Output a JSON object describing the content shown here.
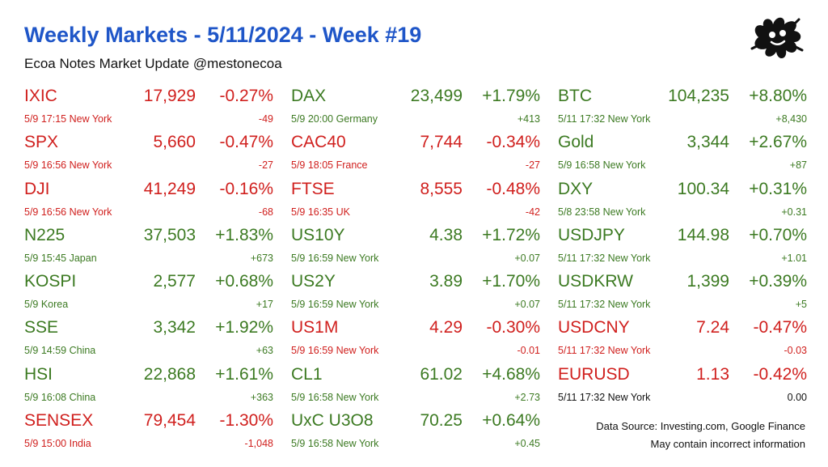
{
  "header": {
    "title": "Weekly Markets - 5/11/2024 - Week #19",
    "subtitle": "Ecoa Notes Market Update @mestonecoa",
    "logo_icon": "ink-blot-face-icon"
  },
  "colors": {
    "up": "#3c7a22",
    "down": "#d0201e",
    "flat": "#111111",
    "title": "#1f56c8"
  },
  "columns": [
    {
      "items": [
        {
          "symbol": "IXIC",
          "price": "17,929",
          "pct": "-0.27%",
          "when": "5/9 17:15 New York",
          "change": "-49",
          "trend": "down"
        },
        {
          "symbol": "SPX",
          "price": "5,660",
          "pct": "-0.47%",
          "when": "5/9 16:56 New York",
          "change": "-27",
          "trend": "down"
        },
        {
          "symbol": "DJI",
          "price": "41,249",
          "pct": "-0.16%",
          "when": "5/9 16:56 New York",
          "change": "-68",
          "trend": "down"
        },
        {
          "symbol": "N225",
          "price": "37,503",
          "pct": "+1.83%",
          "when": "5/9 15:45 Japan",
          "change": "+673",
          "trend": "up"
        },
        {
          "symbol": "KOSPI",
          "price": "2,577",
          "pct": "+0.68%",
          "when": "5/9  Korea",
          "change": "+17",
          "trend": "up"
        },
        {
          "symbol": "SSE",
          "price": "3,342",
          "pct": "+1.92%",
          "when": "5/9 14:59 China",
          "change": "+63",
          "trend": "up"
        },
        {
          "symbol": "HSI",
          "price": "22,868",
          "pct": "+1.61%",
          "when": "5/9 16:08 China",
          "change": "+363",
          "trend": "up"
        },
        {
          "symbol": "SENSEX",
          "price": "79,454",
          "pct": "-1.30%",
          "when": "5/9 15:00 India",
          "change": "-1,048",
          "trend": "down"
        }
      ]
    },
    {
      "items": [
        {
          "symbol": "DAX",
          "price": "23,499",
          "pct": "+1.79%",
          "when": "5/9 20:00 Germany",
          "change": "+413",
          "trend": "up"
        },
        {
          "symbol": "CAC40",
          "price": "7,744",
          "pct": "-0.34%",
          "when": "5/9 18:05 France",
          "change": "-27",
          "trend": "down"
        },
        {
          "symbol": "FTSE",
          "price": "8,555",
          "pct": "-0.48%",
          "when": "5/9 16:35 UK",
          "change": "-42",
          "trend": "down"
        },
        {
          "symbol": "US10Y",
          "price": "4.38",
          "pct": "+1.72%",
          "when": "5/9 16:59 New York",
          "change": "+0.07",
          "trend": "up"
        },
        {
          "symbol": "US2Y",
          "price": "3.89",
          "pct": "+1.70%",
          "when": "5/9 16:59 New York",
          "change": "+0.07",
          "trend": "up"
        },
        {
          "symbol": "US1M",
          "price": "4.29",
          "pct": "-0.30%",
          "when": "5/9 16:59 New York",
          "change": "-0.01",
          "trend": "down"
        },
        {
          "symbol": "CL1",
          "price": "61.02",
          "pct": "+4.68%",
          "when": "5/9 16:58 New York",
          "change": "+2.73",
          "trend": "up"
        },
        {
          "symbol": "UxC U3O8",
          "price": "70.25",
          "pct": "+0.64%",
          "when": "5/9 16:58 New York",
          "change": "+0.45",
          "trend": "up"
        }
      ]
    },
    {
      "items": [
        {
          "symbol": "BTC",
          "price": "104,235",
          "pct": "+8.80%",
          "when": "5/11 17:32 New York",
          "change": "+8,430",
          "trend": "up"
        },
        {
          "symbol": "Gold",
          "price": "3,344",
          "pct": "+2.67%",
          "when": "5/9 16:58 New York",
          "change": "+87",
          "trend": "up"
        },
        {
          "symbol": "DXY",
          "price": "100.34",
          "pct": "+0.31%",
          "when": "5/8 23:58 New York",
          "change": "+0.31",
          "trend": "up"
        },
        {
          "symbol": "USDJPY",
          "price": "144.98",
          "pct": "+0.70%",
          "when": "5/11 17:32 New York",
          "change": "+1.01",
          "trend": "up"
        },
        {
          "symbol": "USDKRW",
          "price": "1,399",
          "pct": "+0.39%",
          "when": "5/11 17:32 New York",
          "change": "+5",
          "trend": "up"
        },
        {
          "symbol": "USDCNY",
          "price": "7.24",
          "pct": "-0.47%",
          "when": "5/11 17:32 New York",
          "change": "-0.03",
          "trend": "down"
        },
        {
          "symbol": "EURUSD",
          "price": "1.13",
          "pct": "-0.42%",
          "when": "5/11 17:32 New York",
          "change": "0.00",
          "trend": "down",
          "sub_trend": "flat"
        }
      ]
    }
  ],
  "footer": {
    "source": "Data Source: Investing.com, Google Finance",
    "note": "May contain incorrect information"
  }
}
